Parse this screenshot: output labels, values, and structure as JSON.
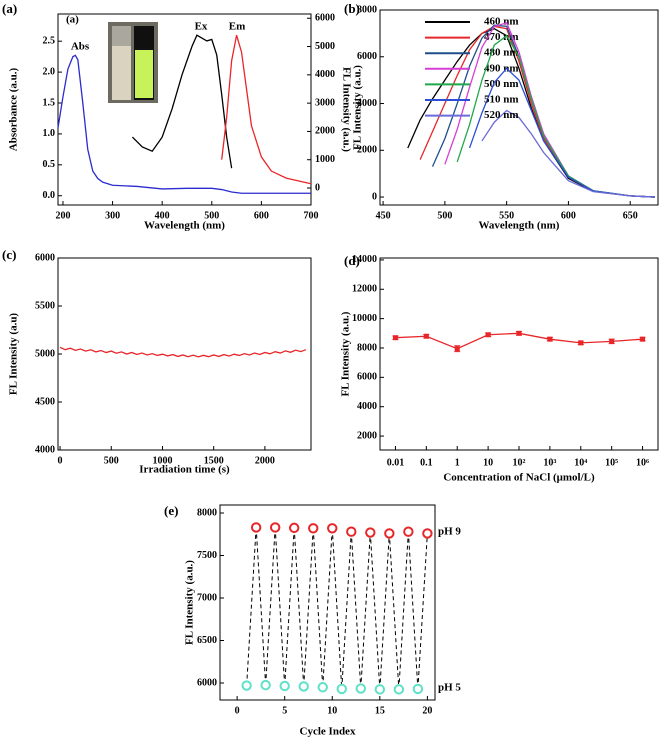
{
  "chart_data": [
    {
      "type": "line",
      "panel_label": "(a)",
      "inset_label": "(a)",
      "xlabel": "Wavelength (nm)",
      "ylabel": "Absorbance (a.u.)",
      "y2label": "FL Intensity (a.u.)",
      "xlim": [
        190,
        700
      ],
      "xticks": [
        200,
        300,
        400,
        500,
        600,
        700
      ],
      "ylim": [
        -0.15,
        2.94
      ],
      "yticks": [
        {
          "value": 0,
          "label": "0.0"
        },
        {
          "value": 0.5,
          "label": "0.5"
        },
        {
          "value": 1,
          "label": "1.0"
        },
        {
          "value": 1.5,
          "label": "1.5"
        },
        {
          "value": 2,
          "label": "2.0"
        },
        {
          "value": 2.5,
          "label": "2.5"
        }
      ],
      "y2lim": [
        -600,
        6150
      ],
      "y2ticks": [
        0,
        1000,
        2000,
        3000,
        4000,
        5000,
        6000
      ],
      "series": [
        {
          "name": "Abs",
          "color": "#2b2bd0",
          "x": [
            190,
            200,
            210,
            220,
            225,
            230,
            240,
            250,
            260,
            270,
            280,
            300,
            350,
            400,
            450,
            500,
            520,
            540,
            560,
            600,
            650,
            700
          ],
          "values": [
            1.1,
            1.6,
            2.05,
            2.25,
            2.27,
            2.2,
            1.5,
            0.75,
            0.4,
            0.28,
            0.22,
            0.17,
            0.15,
            0.11,
            0.12,
            0.12,
            0.1,
            0.06,
            0.04,
            0.04,
            0.04,
            0.04
          ]
        },
        {
          "name": "Ex",
          "color": "#000000",
          "axis": "y2",
          "x": [
            340,
            360,
            380,
            400,
            420,
            440,
            460,
            470,
            480,
            490,
            500,
            510,
            520,
            530,
            540
          ],
          "values": [
            1800,
            1450,
            1300,
            1800,
            2800,
            4000,
            5000,
            5400,
            5300,
            5200,
            5250,
            4700,
            3300,
            1800,
            700
          ]
        },
        {
          "name": "Em",
          "color": "#e8262a",
          "axis": "y2",
          "x": [
            520,
            530,
            540,
            550,
            560,
            570,
            580,
            600,
            620,
            650,
            700
          ],
          "values": [
            1000,
            2500,
            4500,
            5400,
            4800,
            3500,
            2200,
            1100,
            600,
            350,
            150
          ]
        }
      ]
    },
    {
      "type": "line",
      "panel_label": "(b)",
      "xlabel": "Wavelength (nm)",
      "ylabel": "FL Intensity (a.u.)",
      "xlim": [
        447.5,
        672.5
      ],
      "xticks": [
        450,
        500,
        550,
        600,
        650
      ],
      "ylim": [
        -340,
        8000
      ],
      "yticks": [
        0,
        2000,
        4000,
        6000,
        8000
      ],
      "legend": "upper right",
      "x": [
        470,
        480,
        490,
        500,
        510,
        520,
        530,
        540,
        550,
        560,
        570,
        580,
        600,
        620,
        650,
        670
      ],
      "series": [
        {
          "name": "460 nm",
          "color": "#000000",
          "values": [
            2100,
            3300,
            4200,
            5000,
            5800,
            6500,
            7000,
            7200,
            6900,
            5500,
            3800,
            2400,
            800,
            250,
            50,
            0
          ]
        },
        {
          "name": "470 nm",
          "color": "#e8262a",
          "values": [
            null,
            1600,
            2800,
            4000,
            5200,
            6300,
            7000,
            7300,
            7200,
            5800,
            4000,
            2500,
            850,
            260,
            50,
            0
          ]
        },
        {
          "name": "480 nm",
          "color": "#1f4e8c",
          "values": [
            null,
            null,
            1300,
            2500,
            4000,
            5600,
            6800,
            7350,
            7300,
            6000,
            4200,
            2600,
            900,
            270,
            50,
            0
          ]
        },
        {
          "name": "490 nm",
          "color": "#d63fd6",
          "values": [
            null,
            null,
            null,
            1400,
            2900,
            4700,
            6400,
            7300,
            7450,
            6200,
            4300,
            2700,
            900,
            270,
            50,
            0
          ]
        },
        {
          "name": "500 nm",
          "color": "#1fa84a",
          "values": [
            null,
            null,
            null,
            null,
            1500,
            3100,
            5000,
            6500,
            6900,
            6000,
            4200,
            2600,
            900,
            270,
            50,
            0
          ]
        },
        {
          "name": "510 nm",
          "color": "#2a4fd6",
          "values": [
            null,
            null,
            null,
            null,
            null,
            2100,
            3600,
            4900,
            5500,
            5000,
            3700,
            2400,
            850,
            260,
            50,
            0
          ]
        },
        {
          "name": "520 nm",
          "color": "#6a6ad8",
          "values": [
            null,
            null,
            null,
            null,
            null,
            null,
            2400,
            3200,
            3700,
            3400,
            2700,
            1900,
            700,
            230,
            50,
            0
          ]
        }
      ]
    },
    {
      "type": "line",
      "panel_label": "(c)",
      "xlabel": "Irradiation time (s)",
      "ylabel": "FL Intensity (a.u)",
      "xlim": [
        -20,
        2450
      ],
      "xticks": [
        0,
        500,
        1000,
        1500,
        2000
      ],
      "ylim": [
        4000,
        6000
      ],
      "yticks": [
        4000,
        4500,
        5000,
        5500,
        6000
      ],
      "color": "#e8262a",
      "x": [
        0,
        50,
        100,
        150,
        200,
        250,
        300,
        350,
        400,
        450,
        500,
        550,
        600,
        650,
        700,
        750,
        800,
        850,
        900,
        950,
        1000,
        1050,
        1100,
        1150,
        1200,
        1250,
        1300,
        1350,
        1400,
        1450,
        1500,
        1550,
        1600,
        1650,
        1700,
        1750,
        1800,
        1850,
        1900,
        1950,
        2000,
        2050,
        2100,
        2150,
        2200,
        2250,
        2300,
        2350,
        2400
      ],
      "values": [
        5070,
        5045,
        5060,
        5038,
        5052,
        5030,
        5044,
        5022,
        5036,
        5015,
        5030,
        5008,
        5022,
        5000,
        5016,
        4995,
        5010,
        4990,
        5004,
        4985,
        4998,
        4980,
        4994,
        4975,
        4990,
        4972,
        4988,
        4970,
        4986,
        4972,
        4990,
        4975,
        4994,
        4978,
        4998,
        4985,
        5004,
        4990,
        5010,
        4995,
        5016,
        5002,
        5024,
        5010,
        5032,
        5018,
        5040,
        5025,
        5045
      ]
    },
    {
      "type": "line",
      "panel_label": "(d)",
      "marker": "square",
      "xlabel": "Concentration of NaCl (μmol/L)",
      "ylabel": "FL Intensity (a.u.)",
      "ylim": [
        1050,
        14130
      ],
      "yticks": [
        2000,
        4000,
        6000,
        8000,
        10000,
        12000,
        14000
      ],
      "color": "#e8262a",
      "categories": [
        "0.01",
        "0.1",
        "1",
        "10",
        "10²",
        "10³",
        "10⁴",
        "10⁵",
        "10⁶"
      ],
      "values": [
        8700,
        8800,
        7950,
        8900,
        9000,
        8600,
        8350,
        8450,
        8600
      ],
      "errors": [
        120,
        120,
        200,
        120,
        120,
        120,
        120,
        150,
        120
      ]
    },
    {
      "type": "scatter",
      "panel_label": "(e)",
      "line_style": "dashed",
      "line_color": "#000000",
      "xlabel": "Cycle Index",
      "ylabel": "FL Intensity (a.u.)",
      "xlim": [
        -1.8,
        20.8
      ],
      "xticks": [
        0,
        5,
        10,
        15,
        20
      ],
      "ylim": [
        5800,
        8094
      ],
      "yticks": [
        6000,
        6500,
        7000,
        7500,
        8000
      ],
      "series": [
        {
          "name": "pH 5",
          "color": "#5fe0c8",
          "x": [
            1,
            3,
            5,
            7,
            9,
            11,
            13,
            15,
            17,
            19
          ],
          "values": [
            5970,
            5975,
            5965,
            5960,
            5950,
            5930,
            5935,
            5925,
            5925,
            5930
          ]
        },
        {
          "name": "pH 9",
          "color": "#e8262a",
          "x": [
            2,
            4,
            6,
            8,
            10,
            12,
            14,
            16,
            18,
            20
          ],
          "values": [
            7830,
            7830,
            7825,
            7820,
            7820,
            7780,
            7770,
            7760,
            7780,
            7760
          ]
        }
      ]
    }
  ]
}
